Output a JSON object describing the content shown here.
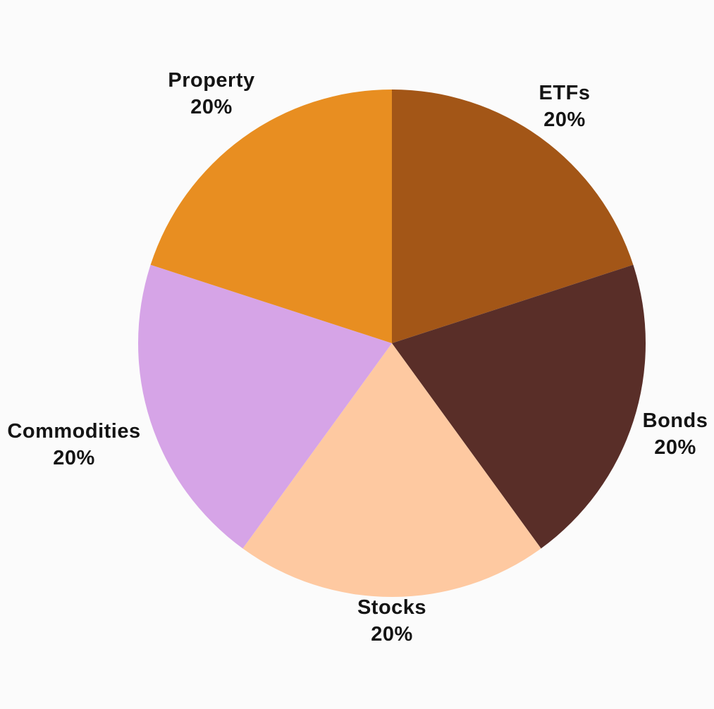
{
  "canvas": {
    "background": "#FBFBFB",
    "text_color": "#141414"
  },
  "chart_data": {
    "type": "pie",
    "title": "",
    "legend": "none",
    "labels_outside": true,
    "start_angle_deg": 0,
    "direction": "clockwise",
    "slices": [
      {
        "label": "ETFs",
        "value": 20,
        "value_label": "20%",
        "color": "#A35617"
      },
      {
        "label": "Bonds",
        "value": 20,
        "value_label": "20%",
        "color": "#592E28"
      },
      {
        "label": "Stocks",
        "value": 20,
        "value_label": "20%",
        "color": "#FEC9A1"
      },
      {
        "label": "Commodities",
        "value": 20,
        "value_label": "20%",
        "color": "#D6A4E7"
      },
      {
        "label": "Property",
        "value": 20,
        "value_label": "20%",
        "color": "#E88E21"
      }
    ]
  }
}
